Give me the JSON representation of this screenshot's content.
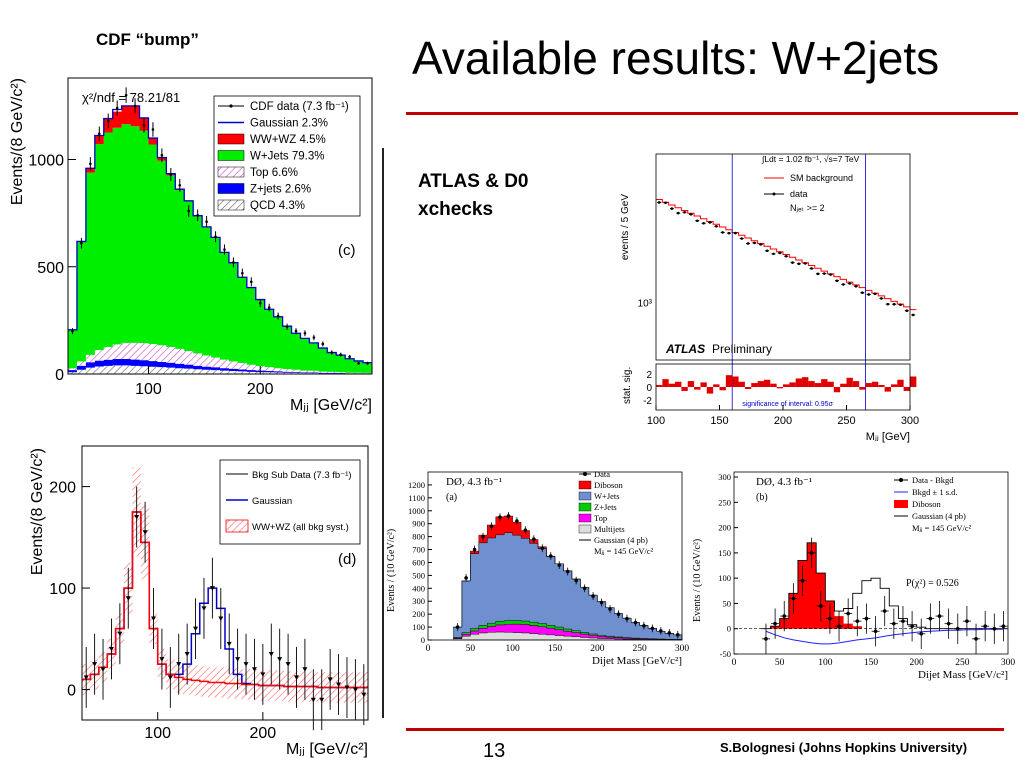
{
  "slide": {
    "title": "Available results: W+2jets",
    "cdf_label": "CDF “bump”",
    "atlas_label_line1": "ATLAS & D0",
    "atlas_label_line2": "xchecks",
    "page_number": "13",
    "author": "S.Bolognesi (Johns Hopkins University)",
    "accent_color": "#c00000"
  },
  "chart_data": [
    {
      "id": "cdf_c",
      "type": "area",
      "panel_label": "(c)",
      "annotation": "χ²/ndf = 78.21/81",
      "xlabel": "Mⱼⱼ [GeV/c²]",
      "ylabel": "Events/(8 GeV/c²)",
      "xlim": [
        28,
        300
      ],
      "ylim": [
        0,
        1380
      ],
      "x_ticks": [
        100,
        200
      ],
      "y_ticks": [
        0,
        500,
        1000
      ],
      "x": [
        28,
        36,
        44,
        52,
        60,
        68,
        76,
        84,
        92,
        100,
        108,
        116,
        124,
        132,
        140,
        148,
        156,
        164,
        172,
        180,
        188,
        196,
        204,
        212,
        220,
        228,
        236,
        244,
        252,
        260,
        268,
        276,
        284,
        292
      ],
      "series": [
        {
          "name": "QCD 4.3%",
          "color": "#ffffff",
          "values": [
            8,
            20,
            30,
            35,
            38,
            40,
            40,
            38,
            36,
            34,
            32,
            30,
            27,
            25,
            22,
            20,
            18,
            16,
            14,
            12,
            10,
            9,
            8,
            7,
            6,
            5,
            4,
            4,
            3,
            3,
            2,
            2,
            2,
            2
          ]
        },
        {
          "name": "Z+jets 2.6%",
          "color": "#0000ff",
          "values": [
            10,
            18,
            24,
            27,
            28,
            30,
            30,
            29,
            28,
            26,
            24,
            22,
            20,
            18,
            16,
            14,
            13,
            11,
            10,
            9,
            8,
            7,
            6,
            5,
            4,
            4,
            3,
            3,
            2,
            2,
            2,
            1,
            1,
            1
          ]
        },
        {
          "name": "Top 6.6%",
          "color": "#ff66ff",
          "values": [
            8,
            20,
            35,
            50,
            60,
            68,
            75,
            78,
            80,
            80,
            78,
            74,
            70,
            64,
            58,
            52,
            46,
            40,
            35,
            30,
            25,
            21,
            18,
            15,
            13,
            11,
            9,
            8,
            6,
            5,
            4,
            3,
            3,
            2
          ]
        },
        {
          "name": "W+Jets 79.3%",
          "color": "#00ee00",
          "values": [
            180,
            560,
            850,
            960,
            1000,
            1010,
            1020,
            1010,
            990,
            930,
            860,
            800,
            740,
            700,
            640,
            600,
            560,
            500,
            460,
            400,
            360,
            310,
            270,
            240,
            200,
            170,
            150,
            130,
            110,
            90,
            80,
            65,
            55,
            48
          ]
        },
        {
          "name": "WW+WZ 4.5%",
          "color": "#ff0000",
          "values": [
            0,
            0,
            20,
            40,
            65,
            75,
            85,
            95,
            60,
            30,
            15,
            8,
            5,
            3,
            2,
            0,
            0,
            0,
            0,
            0,
            0,
            0,
            0,
            0,
            0,
            0,
            0,
            0,
            0,
            0,
            0,
            0,
            0,
            0
          ]
        }
      ],
      "gaussian": {
        "name": "Gaussian  2.3%",
        "color": "#0000cc",
        "values": [
          206,
          618,
          959,
          1112,
          1191,
          1233,
          1250,
          1250,
          1194,
          1100,
          1009,
          934,
          862,
          807,
          738,
          686,
          637,
          567,
          519,
          451,
          403,
          347,
          302,
          267,
          223,
          190,
          166,
          145,
          121,
          100,
          88,
          71,
          61,
          53
        ]
      },
      "data": {
        "name": "CDF data (7.3 fb⁻¹)",
        "values": [
          200,
          610,
          980,
          1120,
          1180,
          1240,
          1300,
          1250,
          1160,
          1140,
          1020,
          930,
          880,
          760,
          740,
          710,
          640,
          580,
          520,
          470,
          430,
          330,
          310,
          270,
          220,
          200,
          190,
          170,
          140,
          100,
          90,
          80,
          50,
          50
        ]
      }
    },
    {
      "id": "cdf_d",
      "type": "line",
      "panel_label": "(d)",
      "xlabel": "Mⱼⱼ [GeV/c²]",
      "ylabel": "Events/(8 GeV/c²)",
      "xlim": [
        28,
        300
      ],
      "ylim": [
        -30,
        240
      ],
      "x_ticks": [
        100,
        200
      ],
      "y_ticks": [
        0,
        100,
        200
      ],
      "x": [
        28,
        36,
        44,
        52,
        60,
        68,
        76,
        84,
        92,
        100,
        108,
        116,
        124,
        132,
        140,
        148,
        156,
        164,
        172,
        180,
        188,
        196,
        204,
        212,
        220,
        228,
        236,
        244,
        252,
        260,
        268,
        276,
        284,
        292
      ],
      "ww_wz": {
        "name": "WW+WZ (all bkg syst.)",
        "color": "#ff0000",
        "values": [
          10,
          15,
          22,
          35,
          60,
          100,
          175,
          145,
          60,
          25,
          15,
          12,
          10,
          9,
          8,
          7,
          7,
          6,
          6,
          5,
          5,
          4,
          4,
          4,
          3,
          3,
          3,
          3,
          2,
          2,
          2,
          2,
          2,
          2
        ]
      },
      "gaussian": {
        "name": "Gaussian",
        "color": "#0000cc",
        "values": [
          10,
          15,
          22,
          35,
          60,
          100,
          175,
          145,
          60,
          25,
          15,
          15,
          25,
          55,
          85,
          100,
          80,
          40,
          15,
          6,
          5,
          4,
          4,
          4,
          3,
          3,
          3,
          3,
          2,
          2,
          2,
          2,
          2,
          2
        ]
      },
      "data": {
        "name": "Bkg Sub Data (7.3 fb⁻¹)",
        "values": [
          12,
          25,
          20,
          40,
          55,
          90,
          170,
          155,
          70,
          30,
          12,
          25,
          35,
          60,
          80,
          100,
          70,
          45,
          30,
          25,
          20,
          15,
          35,
          30,
          25,
          12,
          20,
          -10,
          -10,
          10,
          5,
          2,
          0,
          -5
        ]
      }
    },
    {
      "id": "atlas",
      "type": "line",
      "log_scale_y": true,
      "annotation_lumi": "∫Ldt = 1.02 fb⁻¹, √s=7 TeV",
      "njet_label": "Nⱼₑₜ >= 2",
      "brand": "ATLAS",
      "brand_sub": "Preliminary",
      "ylabel": "events / 5 GeV",
      "ratio_ylabel": "stat. sig.",
      "xlabel": "Mⱼⱼ [GeV]",
      "xlim": [
        100,
        300
      ],
      "y_tick_label": "10³",
      "x_ticks": [
        100,
        150,
        200,
        250,
        300
      ],
      "ratio_ticks": [
        2,
        0,
        -2
      ],
      "significance_text": "significance of interval: 0.95σ",
      "window": [
        160,
        265
      ],
      "sm_background": {
        "name": "SM background",
        "color": "#ff0000",
        "values": [
          3400,
          900
        ]
      },
      "data": {
        "name": "data",
        "x_start": 100,
        "x_step": 5,
        "count": 41
      },
      "ratio_values": [
        0.3,
        1.2,
        0.5,
        0.8,
        -0.6,
        0.9,
        -0.4,
        0.7,
        -1.0,
        0.4,
        -0.5,
        1.8,
        1.6,
        0.8,
        -0.3,
        0.6,
        0.9,
        1.1,
        0.5,
        -0.2,
        0.4,
        0.7,
        1.3,
        1.5,
        0.9,
        0.6,
        1.2,
        0.8,
        -0.8,
        0.5,
        1.4,
        0.9,
        -0.4,
        0.6,
        0.8,
        0.3,
        -0.7,
        0.4,
        1.1,
        -0.6,
        1.6
      ]
    },
    {
      "id": "d0_a",
      "type": "area",
      "header": "DØ, 4.3 fb⁻¹",
      "panel_label": "(a)",
      "xlabel": "Dijet Mass [GeV/c²]",
      "ylabel": "Events / (10 GeV/c²)",
      "xlim": [
        0,
        300
      ],
      "ylim": [
        0,
        1300
      ],
      "x_ticks": [
        0,
        50,
        100,
        150,
        200,
        250,
        300
      ],
      "y_ticks": [
        0,
        100,
        200,
        300,
        400,
        500,
        600,
        700,
        800,
        900,
        1000,
        1100,
        1200
      ],
      "gaussian_note": "Mⱼⱼ = 145 GeV/c²",
      "x": [
        30,
        40,
        50,
        60,
        70,
        80,
        90,
        100,
        110,
        120,
        130,
        140,
        150,
        160,
        170,
        180,
        190,
        200,
        210,
        220,
        230,
        240,
        250,
        260,
        270,
        280,
        290
      ],
      "series": [
        {
          "name": "Multijets",
          "color": "#dddddd",
          "values": [
            10,
            30,
            45,
            55,
            60,
            62,
            60,
            58,
            55,
            50,
            45,
            40,
            35,
            30,
            25,
            20,
            16,
            12,
            10,
            8,
            6,
            5,
            4,
            3,
            3,
            2,
            2
          ]
        },
        {
          "name": "Top",
          "color": "#ff00ff",
          "values": [
            5,
            15,
            25,
            35,
            45,
            55,
            62,
            65,
            65,
            62,
            58,
            52,
            45,
            38,
            32,
            26,
            21,
            17,
            13,
            10,
            8,
            6,
            5,
            4,
            3,
            2,
            2
          ]
        },
        {
          "name": "Z+Jets",
          "color": "#00cc00",
          "values": [
            5,
            12,
            18,
            22,
            25,
            27,
            28,
            28,
            27,
            26,
            24,
            22,
            20,
            17,
            15,
            12,
            10,
            8,
            7,
            6,
            5,
            4,
            3,
            3,
            2,
            2,
            1
          ]
        },
        {
          "name": "W+Jets",
          "color": "#6f8fcf",
          "values": [
            80,
            400,
            580,
            640,
            660,
            670,
            680,
            660,
            640,
            610,
            580,
            530,
            490,
            450,
            400,
            350,
            300,
            260,
            220,
            180,
            150,
            120,
            100,
            80,
            60,
            45,
            35
          ]
        },
        {
          "name": "Diboson",
          "color": "#ff0000",
          "values": [
            0,
            0,
            20,
            60,
            100,
            140,
            130,
            100,
            60,
            30,
            15,
            5,
            0,
            0,
            0,
            0,
            0,
            0,
            0,
            0,
            0,
            0,
            0,
            0,
            0,
            0,
            0
          ]
        }
      ],
      "gaussian": {
        "name": "Gaussian (4 pb)"
      },
      "data": {
        "name": "Data",
        "values": [
          100,
          480,
          700,
          800,
          880,
          950,
          960,
          920,
          850,
          780,
          710,
          650,
          580,
          530,
          460,
          400,
          340,
          290,
          240,
          200,
          165,
          135,
          110,
          90,
          70,
          55,
          40
        ]
      }
    },
    {
      "id": "d0_b",
      "type": "line",
      "header": "DØ, 4.3 fb⁻¹",
      "panel_label": "(b)",
      "xlabel": "Dijet Mass [GeV/c²]",
      "ylabel": "Events / (10 GeV/c²)",
      "xlim": [
        0,
        300
      ],
      "ylim": [
        -50,
        310
      ],
      "x_ticks": [
        0,
        50,
        100,
        150,
        200,
        250,
        300
      ],
      "y_ticks": [
        -50,
        0,
        50,
        100,
        150,
        200,
        250,
        300
      ],
      "p_chi2": "P(χ²) = 0.526",
      "gaussian_note": "Mⱼⱼ = 145 GeV/c²",
      "x": [
        30,
        40,
        50,
        60,
        70,
        80,
        90,
        100,
        110,
        120,
        130,
        140,
        150,
        160,
        170,
        180,
        190,
        200,
        210,
        220,
        230,
        240,
        250,
        260,
        270,
        280,
        290
      ],
      "diboson": {
        "name": "Diboson",
        "color": "#ff0000",
        "values": [
          0,
          5,
          20,
          70,
          135,
          170,
          110,
          55,
          25,
          10,
          5,
          0,
          0,
          0,
          0,
          0,
          0,
          0,
          0,
          0,
          0,
          0,
          0,
          0,
          0,
          0,
          0
        ]
      },
      "gaussian": {
        "name": "Gaussian (4 pb)",
        "values": [
          0,
          5,
          20,
          70,
          135,
          170,
          110,
          55,
          35,
          40,
          70,
          95,
          100,
          80,
          45,
          20,
          8,
          3,
          0,
          0,
          0,
          0,
          0,
          0,
          0,
          0,
          0
        ]
      },
      "bkgd_band": {
        "name": "Bkgd ± 1 s.d.",
        "values": [
          -5,
          -12,
          -18,
          -22,
          -25,
          -28,
          -30,
          -30,
          -28,
          -25,
          -22,
          -20,
          -18,
          -15,
          -12,
          -10,
          -8,
          -6,
          -5,
          -4,
          -3,
          -3,
          -2,
          -2,
          -1,
          -1,
          -1
        ]
      },
      "data": {
        "name": "Data - Bkgd",
        "values": [
          -20,
          10,
          25,
          60,
          95,
          150,
          45,
          20,
          5,
          30,
          15,
          20,
          -5,
          35,
          10,
          15,
          5,
          -10,
          20,
          25,
          10,
          0,
          15,
          -20,
          5,
          0,
          5
        ]
      }
    }
  ]
}
